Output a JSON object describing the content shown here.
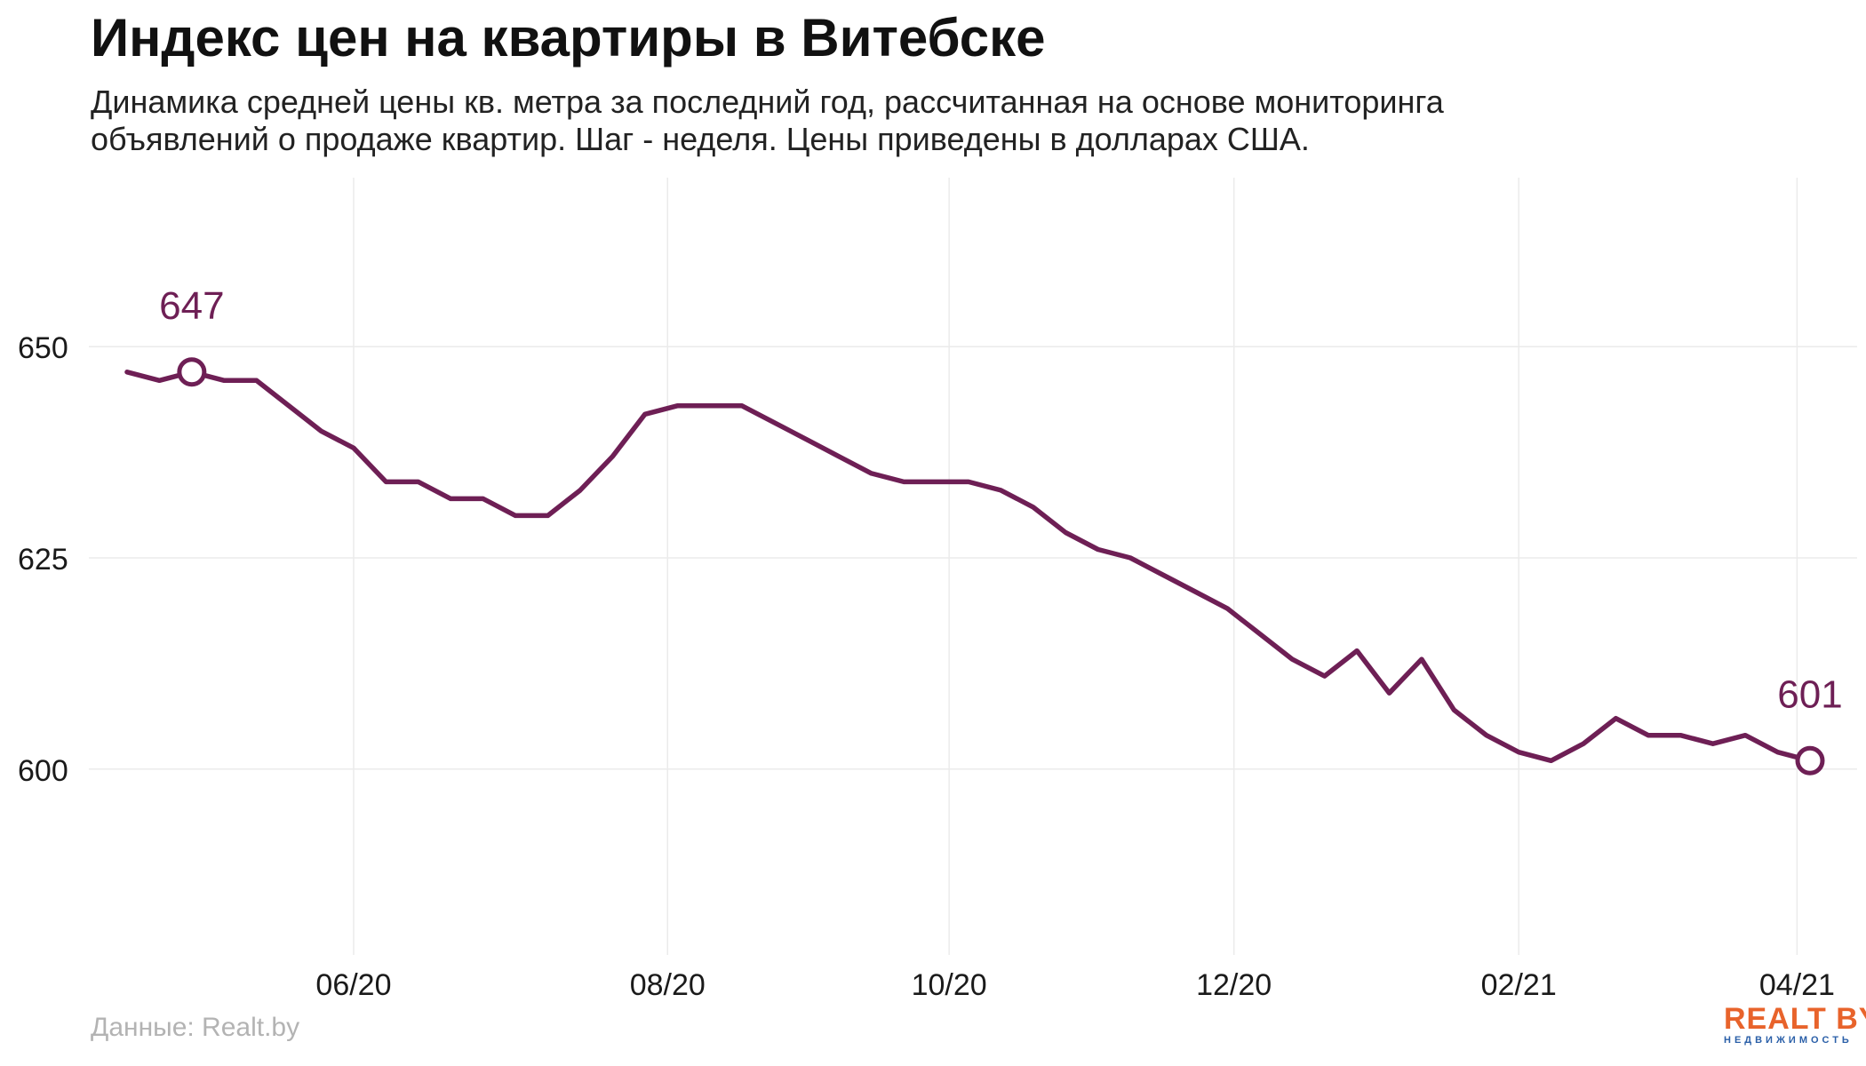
{
  "title": "Индекс цен на квартиры в Витебске",
  "subtitle_lines": [
    "Динамика средней цены кв. метра за последний год, рассчитанная на основе мониторинга",
    "объявлений о продаже квартир. Шаг - неделя. Цены приведены в долларах США."
  ],
  "source": "Данные: Realt.by",
  "logo": {
    "text": "REALT BY",
    "subtext": "НЕДВИЖИМОСТЬ"
  },
  "colors": {
    "line": "#6e1f55",
    "grid": "#ebebeb",
    "axis_text": "#1a1a1a",
    "source": "#b3b3b3",
    "logo_main": "#e8632b",
    "logo_sub": "#2a5fa8"
  },
  "chart_data": {
    "type": "line",
    "title": "Индекс цен на квартиры в Витебске",
    "xlabel": "",
    "ylabel": "",
    "ylim": [
      578,
      670
    ],
    "yticks": [
      600,
      625,
      650
    ],
    "xticks": [
      {
        "label": "06/20",
        "week": 7
      },
      {
        "label": "08/20",
        "week": 16.7
      },
      {
        "label": "10/20",
        "week": 25.4
      },
      {
        "label": "12/20",
        "week": 34.2
      },
      {
        "label": "02/21",
        "week": 43
      },
      {
        "label": "04/21",
        "week": 51.6
      }
    ],
    "grid": true,
    "series": [
      {
        "values": [
          647,
          646,
          647,
          646,
          646,
          643,
          640,
          638,
          634,
          634,
          632,
          632,
          630,
          630,
          633,
          637,
          642,
          643,
          643,
          643,
          641,
          639,
          637,
          635,
          634,
          634,
          634,
          633,
          631,
          628,
          626,
          625,
          623,
          621,
          619,
          616,
          613,
          611,
          614,
          609,
          613,
          607,
          604,
          602,
          601,
          603,
          606,
          604,
          604,
          603,
          604,
          602,
          601
        ]
      }
    ],
    "annotations": [
      {
        "label": "647",
        "index": 2,
        "value": 647
      },
      {
        "label": "601",
        "index": 52,
        "value": 601
      }
    ]
  }
}
